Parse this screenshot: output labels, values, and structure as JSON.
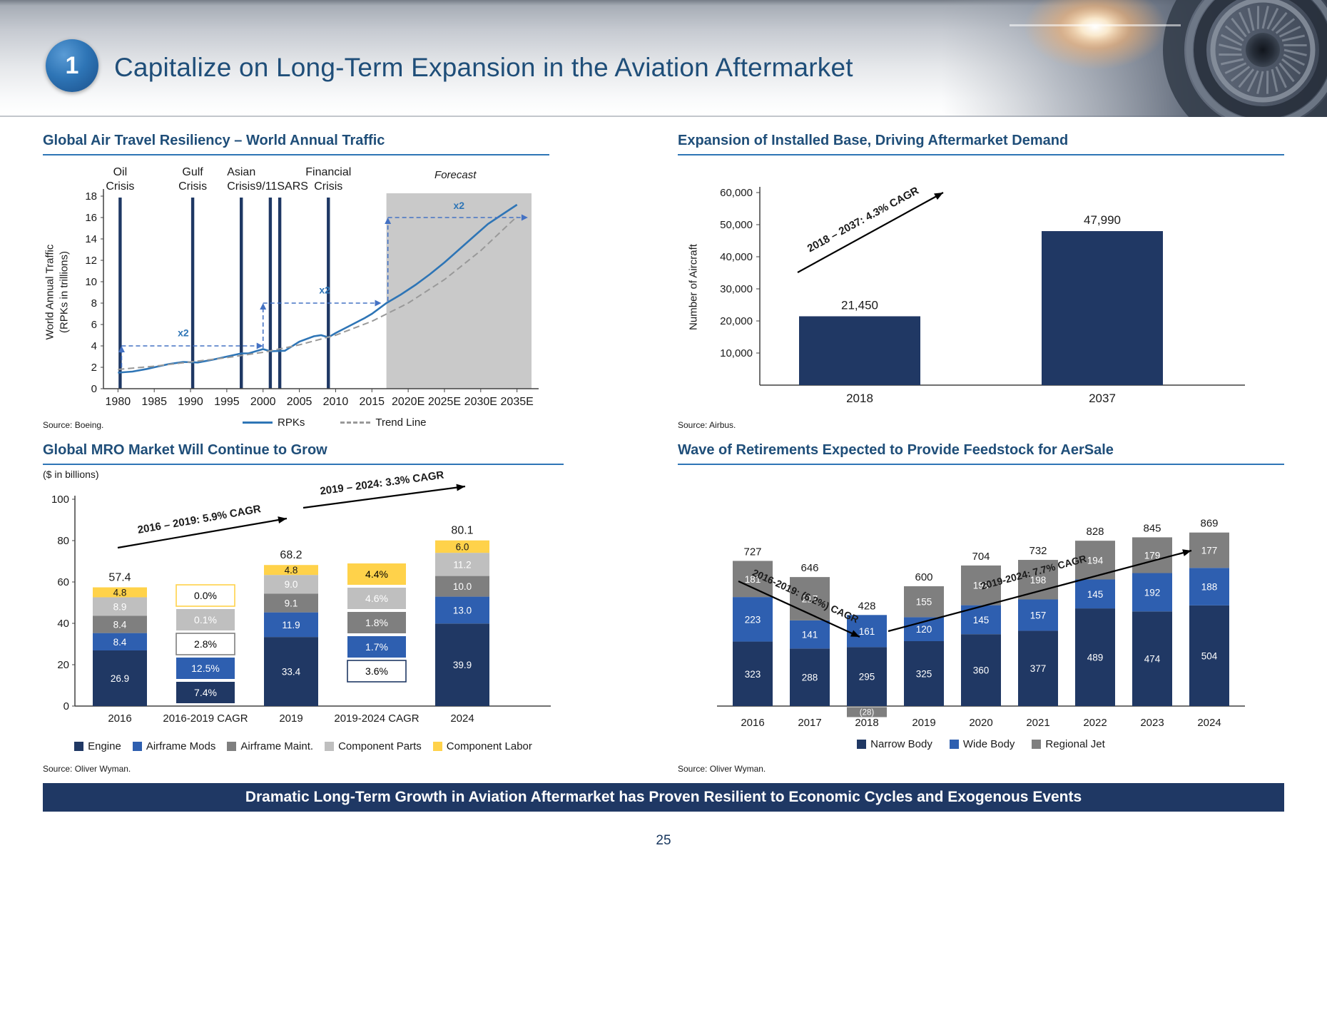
{
  "slide": {
    "number_badge": "1",
    "title": "Capitalize on Long-Term Expansion in the Aviation Aftermarket",
    "banner": "Dramatic Long-Term Growth in Aviation Aftermarket has Proven Resilient to Economic Cycles and Exogenous Events",
    "page_number": "25"
  },
  "chart_data": [
    {
      "id": "world-annual-traffic",
      "type": "line",
      "title": "Global Air Travel Resiliency – World Annual Traffic",
      "ylabel_line1": "World Annual Traffic",
      "ylabel_line2": "(RPKs in trillions)",
      "ylim": [
        0,
        18
      ],
      "yticks": [
        0,
        2,
        4,
        6,
        8,
        10,
        12,
        14,
        16,
        18
      ],
      "x_range": [
        1978,
        2037
      ],
      "xtick_years": [
        1980,
        1985,
        1990,
        1995,
        2000,
        2005,
        2010,
        2015,
        2020,
        2025,
        2030,
        2035
      ],
      "xtick_labels": [
        "1980",
        "1985",
        "1990",
        "1995",
        "2000",
        "2005",
        "2010",
        "2015",
        "2020E",
        "2025E",
        "2030E",
        "2035E"
      ],
      "forecast_label": "Forecast",
      "forecast_start_year": 2017,
      "crisis_events": [
        {
          "label": "Oil\nCrisis",
          "year": 1980.3
        },
        {
          "label": "Gulf\nCrisis",
          "year": 1990.3
        },
        {
          "label": "Asian\nCrisis",
          "year": 1997
        },
        {
          "label": "9/11SARS",
          "year": 2002.6,
          "single": true
        },
        {
          "label": "Financial\nCrisis",
          "year": 2009
        }
      ],
      "crisis_line_years": [
        1980.3,
        1990.3,
        1997,
        2001,
        2002.3,
        2009
      ],
      "series": [
        {
          "name": "RPKs",
          "style": "solid",
          "color": "#2E75B6",
          "points": [
            [
              1980,
              1.5
            ],
            [
              1982,
              1.6
            ],
            [
              1984,
              1.85
            ],
            [
              1985,
              2.0
            ],
            [
              1987,
              2.3
            ],
            [
              1989,
              2.5
            ],
            [
              1991,
              2.45
            ],
            [
              1993,
              2.7
            ],
            [
              1995,
              3.0
            ],
            [
              1997,
              3.3
            ],
            [
              1998,
              3.3
            ],
            [
              2000,
              3.7
            ],
            [
              2001,
              3.5
            ],
            [
              2003,
              3.55
            ],
            [
              2005,
              4.4
            ],
            [
              2007,
              4.9
            ],
            [
              2008,
              5.0
            ],
            [
              2009,
              4.8
            ],
            [
              2010,
              5.2
            ],
            [
              2012,
              5.9
            ],
            [
              2014,
              6.6
            ],
            [
              2015,
              7.0
            ],
            [
              2017,
              8.0
            ],
            [
              2019,
              8.8
            ],
            [
              2021,
              9.7
            ],
            [
              2023,
              10.7
            ],
            [
              2025,
              11.8
            ],
            [
              2027,
              13.0
            ],
            [
              2029,
              14.2
            ],
            [
              2031,
              15.4
            ],
            [
              2033,
              16.3
            ],
            [
              2035,
              17.2
            ]
          ]
        },
        {
          "name": "Trend Line",
          "style": "dashed",
          "color": "#999999",
          "points": [
            [
              1980,
              1.8
            ],
            [
              1985,
              2.1
            ],
            [
              1990,
              2.5
            ],
            [
              1995,
              2.9
            ],
            [
              2000,
              3.4
            ],
            [
              2005,
              4.1
            ],
            [
              2010,
              5.0
            ],
            [
              2015,
              6.3
            ],
            [
              2020,
              8.0
            ],
            [
              2025,
              10.2
            ],
            [
              2030,
              12.9
            ],
            [
              2035,
              16.1
            ]
          ]
        }
      ],
      "doubling_annotations": [
        {
          "label": "x2",
          "v_x": 1980.5,
          "v_from": 2.0,
          "v_to": 4,
          "h_to": 2000,
          "label_pos": [
            1989,
            4.9
          ]
        },
        {
          "label": "x2",
          "v_x": 2000,
          "v_from": 3.8,
          "v_to": 8,
          "h_to": 2016.3,
          "label_pos": [
            2008.5,
            8.9
          ]
        },
        {
          "label": "x2",
          "v_x": 2017.2,
          "v_from": 8.2,
          "v_to": 16,
          "h_to": 2036.5,
          "label_pos": [
            2027,
            16.8
          ]
        }
      ],
      "legend": [
        {
          "label": "RPKs",
          "style": "solid",
          "color": "#2E75B6"
        },
        {
          "label": "Trend Line",
          "style": "dashed",
          "color": "#999999"
        }
      ],
      "source": "Source: Boeing."
    },
    {
      "id": "installed-base",
      "type": "bar",
      "title": "Expansion of Installed Base, Driving Aftermarket Demand",
      "ylabel": "Number of Aircraft",
      "ylim": [
        0,
        60000
      ],
      "ytick_labels": [
        "10,000",
        "20,000",
        "30,000",
        "40,000",
        "50,000",
        "60,000"
      ],
      "categories": [
        "2018",
        "2037"
      ],
      "values": [
        21450,
        47990
      ],
      "value_labels": [
        "21,450",
        "47,990"
      ],
      "bar_color": "#203864",
      "cagr_label": "2018 – 2037: 4.3% CAGR",
      "source": "Source: Airbus."
    },
    {
      "id": "global-mro-market",
      "type": "stacked-bar",
      "title": "Global MRO Market Will Continue to Grow",
      "units": "($ in billions)",
      "ylim": [
        0,
        100
      ],
      "yticks": [
        0,
        20,
        40,
        60,
        80,
        100
      ],
      "series_names": [
        "Engine",
        "Airframe Mods",
        "Airframe Maint.",
        "Component Parts",
        "Component Labor"
      ],
      "series_colors": [
        "#203864",
        "#2E5FB0",
        "#7F7F7F",
        "#BFBFBF",
        "#FFD24A"
      ],
      "columns": [
        {
          "label": "2016",
          "kind": "stack",
          "total": "57.4",
          "values": [
            26.9,
            8.4,
            8.4,
            8.9,
            4.8
          ],
          "value_labels": [
            "26.9",
            "8.4",
            "8.4",
            "8.9",
            "4.8"
          ]
        },
        {
          "label": "2016-2019 CAGR",
          "kind": "boxes",
          "boxes": [
            {
              "text": "7.4%",
              "bg": "#203864",
              "fg": "#FFFFFF"
            },
            {
              "text": "12.5%",
              "bg": "#2E5FB0",
              "fg": "#FFFFFF"
            },
            {
              "text": "2.8%",
              "bg": "#FFFFFF",
              "fg": "#000000",
              "border": "#7F7F7F"
            },
            {
              "text": "0.1%",
              "bg": "#BFBFBF",
              "fg": "#FFFFFF"
            },
            {
              "text": "0.0%",
              "bg": "#FFFFFF",
              "fg": "#000000",
              "border": "#FFD24A"
            }
          ]
        },
        {
          "label": "2019",
          "kind": "stack",
          "total": "68.2",
          "values": [
            33.4,
            11.9,
            9.1,
            9.0,
            4.8
          ],
          "value_labels": [
            "33.4",
            "11.9",
            "9.1",
            "9.0",
            "4.8"
          ]
        },
        {
          "label": "2019-2024 CAGR",
          "kind": "boxes",
          "boxes": [
            {
              "text": "3.6%",
              "bg": "#FFFFFF",
              "fg": "#000000",
              "border": "#203864"
            },
            {
              "text": "1.7%",
              "bg": "#2E5FB0",
              "fg": "#FFFFFF"
            },
            {
              "text": "1.8%",
              "bg": "#7F7F7F",
              "fg": "#FFFFFF"
            },
            {
              "text": "4.6%",
              "bg": "#BFBFBF",
              "fg": "#FFFFFF"
            },
            {
              "text": "4.4%",
              "bg": "#FFD24A",
              "fg": "#000000"
            }
          ]
        },
        {
          "label": "2024",
          "kind": "stack",
          "total": "80.1",
          "values": [
            39.9,
            13.0,
            10.0,
            11.2,
            6.0
          ],
          "value_labels": [
            "39.9",
            "13.0",
            "10.0",
            "11.2",
            "6.0"
          ]
        }
      ],
      "arrows": [
        {
          "text": "2016 – 2019: 5.9% CAGR"
        },
        {
          "text": "2019 – 2024: 3.3% CAGR"
        }
      ],
      "source": "Source: Oliver Wyman."
    },
    {
      "id": "retirements",
      "type": "stacked-bar",
      "title": "Wave of Retirements Expected to Provide Feedstock for AerSale",
      "categories": [
        "2016",
        "2017",
        "2018",
        "2019",
        "2020",
        "2021",
        "2022",
        "2023",
        "2024"
      ],
      "series_names": [
        "Narrow Body",
        "Wide Body",
        "Regional Jet"
      ],
      "series_colors": [
        "#203864",
        "#2E5FB0",
        "#7F7F7F"
      ],
      "series": [
        {
          "name": "Narrow Body",
          "values": [
            323,
            288,
            295,
            325,
            360,
            377,
            489,
            474,
            504
          ]
        },
        {
          "name": "Wide Body",
          "values": [
            223,
            141,
            161,
            120,
            145,
            157,
            145,
            192,
            188
          ]
        },
        {
          "name": "Regional Jet",
          "values": [
            181,
            217,
            -28,
            155,
            199,
            198,
            194,
            179,
            177
          ]
        }
      ],
      "totals": [
        "727",
        "646",
        "428",
        "600",
        "704",
        "732",
        "828",
        "845",
        "869"
      ],
      "negative_label": "(28)",
      "arrows": [
        {
          "text": "2016-2019: (6.2%) CAGR"
        },
        {
          "text": "2019-2024: 7.7% CAGR"
        }
      ],
      "source": "Source: Oliver Wyman."
    }
  ]
}
